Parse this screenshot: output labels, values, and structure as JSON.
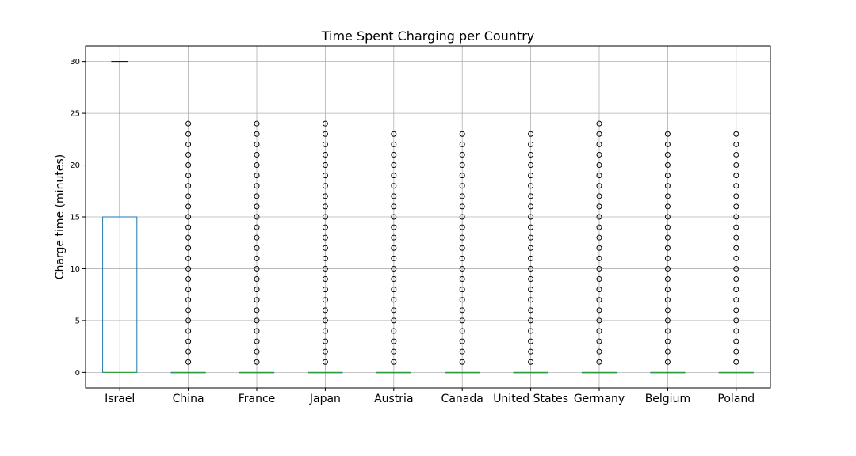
{
  "chart_data": {
    "type": "box",
    "title": "Time Spent Charging per Country",
    "xlabel": "",
    "ylabel": "Charge time (minutes)",
    "ylim": [
      -1.5,
      31.5
    ],
    "yticks": [
      0,
      5,
      10,
      15,
      20,
      25,
      30
    ],
    "grid": true,
    "categories": [
      "Israel",
      "China",
      "France",
      "Japan",
      "Austria",
      "Canada",
      "United States",
      "Germany",
      "Belgium",
      "Poland"
    ],
    "boxes": [
      {
        "q1": 0,
        "median": 0,
        "q3": 15,
        "whisker_low": 0,
        "whisker_high": 30,
        "outliers": []
      },
      {
        "q1": 0,
        "median": 0,
        "q3": 0,
        "whisker_low": 0,
        "whisker_high": 0,
        "outliers": [
          1,
          2,
          3,
          4,
          5,
          6,
          7,
          8,
          9,
          10,
          11,
          12,
          13,
          14,
          15,
          16,
          17,
          18,
          19,
          20,
          21,
          22,
          23,
          24
        ]
      },
      {
        "q1": 0,
        "median": 0,
        "q3": 0,
        "whisker_low": 0,
        "whisker_high": 0,
        "outliers": [
          1,
          2,
          3,
          4,
          5,
          6,
          7,
          8,
          9,
          10,
          11,
          12,
          13,
          14,
          15,
          16,
          17,
          18,
          19,
          20,
          21,
          22,
          23,
          24
        ]
      },
      {
        "q1": 0,
        "median": 0,
        "q3": 0,
        "whisker_low": 0,
        "whisker_high": 0,
        "outliers": [
          1,
          2,
          3,
          4,
          5,
          6,
          7,
          8,
          9,
          10,
          11,
          12,
          13,
          14,
          15,
          16,
          17,
          18,
          19,
          20,
          21,
          22,
          23,
          24
        ]
      },
      {
        "q1": 0,
        "median": 0,
        "q3": 0,
        "whisker_low": 0,
        "whisker_high": 0,
        "outliers": [
          1,
          2,
          3,
          4,
          5,
          6,
          7,
          8,
          9,
          10,
          11,
          12,
          13,
          14,
          15,
          16,
          17,
          18,
          19,
          20,
          21,
          22,
          23
        ]
      },
      {
        "q1": 0,
        "median": 0,
        "q3": 0,
        "whisker_low": 0,
        "whisker_high": 0,
        "outliers": [
          1,
          2,
          3,
          4,
          5,
          6,
          7,
          8,
          9,
          10,
          11,
          12,
          13,
          14,
          15,
          16,
          17,
          18,
          19,
          20,
          21,
          22,
          23
        ]
      },
      {
        "q1": 0,
        "median": 0,
        "q3": 0,
        "whisker_low": 0,
        "whisker_high": 0,
        "outliers": [
          1,
          2,
          3,
          4,
          5,
          6,
          7,
          8,
          9,
          10,
          11,
          12,
          13,
          14,
          15,
          16,
          17,
          18,
          19,
          20,
          21,
          22,
          23
        ]
      },
      {
        "q1": 0,
        "median": 0,
        "q3": 0,
        "whisker_low": 0,
        "whisker_high": 0,
        "outliers": [
          1,
          2,
          3,
          4,
          5,
          6,
          7,
          8,
          9,
          10,
          11,
          12,
          13,
          14,
          15,
          16,
          17,
          18,
          19,
          20,
          21,
          22,
          23,
          24
        ]
      },
      {
        "q1": 0,
        "median": 0,
        "q3": 0,
        "whisker_low": 0,
        "whisker_high": 0,
        "outliers": [
          1,
          2,
          3,
          4,
          5,
          6,
          7,
          8,
          9,
          10,
          11,
          12,
          13,
          14,
          15,
          16,
          17,
          18,
          19,
          20,
          21,
          22,
          23
        ]
      },
      {
        "q1": 0,
        "median": 0,
        "q3": 0,
        "whisker_low": 0,
        "whisker_high": 0,
        "outliers": [
          1,
          2,
          3,
          4,
          5,
          6,
          7,
          8,
          9,
          10,
          11,
          12,
          13,
          14,
          15,
          16,
          17,
          18,
          19,
          20,
          21,
          22,
          23
        ]
      }
    ],
    "colors": {
      "box": "#1f77b4",
      "median": "#2ca02c",
      "whisker": "#1f77b4",
      "cap": "#000000",
      "outlier": "#000000",
      "grid": "#b0b0b0",
      "axis": "#000000"
    }
  }
}
